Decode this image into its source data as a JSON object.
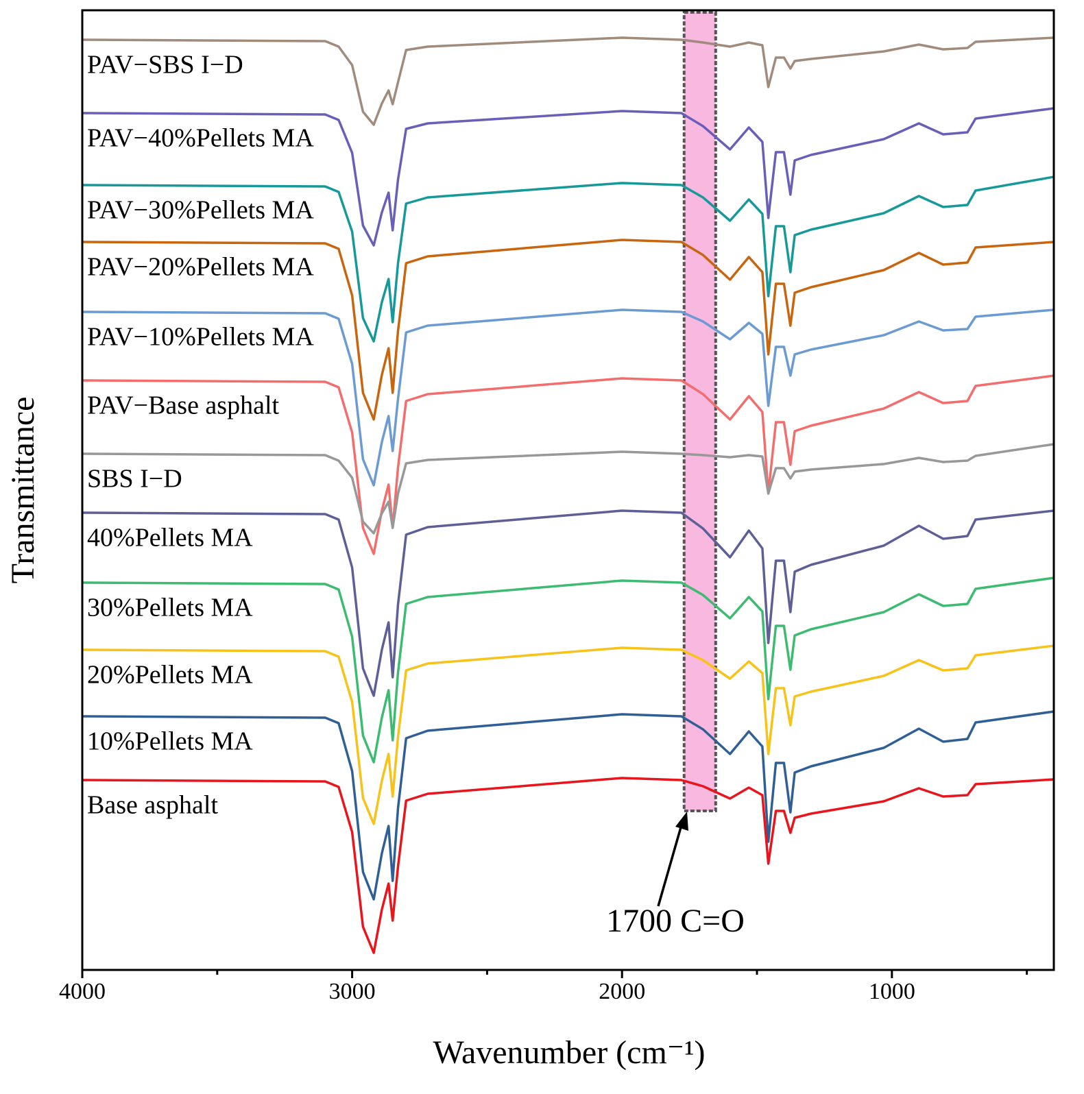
{
  "chart_data": {
    "type": "line",
    "xlabel": "Wavenumber (cm⁻¹)",
    "ylabel": "Transmittance",
    "xlim": [
      4000,
      400
    ],
    "ylim": [
      0,
      1400
    ],
    "xticks": [
      4000,
      3000,
      2000,
      1000
    ],
    "xminorticks": [
      3500,
      2500,
      1500,
      500
    ],
    "highlight_x": [
      1770,
      1653
    ],
    "highlight_color": "#f9b8e0",
    "annotation": "1700 C=O",
    "x": [
      4000,
      3100,
      3050,
      3000,
      2960,
      2920,
      2890,
      2865,
      2850,
      2830,
      2800,
      2720,
      2000,
      1780,
      1700,
      1600,
      1530,
      1480,
      1458,
      1430,
      1400,
      1376,
      1360,
      1300,
      1030,
      900,
      810,
      720,
      690,
      400
    ],
    "series": [
      {
        "name": "PAV−SBS I−D",
        "color": "#a08b7d",
        "values": [
          1357,
          1355,
          1347,
          1320,
          1252,
          1233,
          1264,
          1283,
          1263,
          1295,
          1342,
          1347,
          1360,
          1357,
          1353,
          1347,
          1353,
          1349,
          1288,
          1331,
          1331,
          1315,
          1326,
          1329,
          1340,
          1350,
          1343,
          1345,
          1354,
          1360
        ]
      },
      {
        "name": "PAV−40%Pellets MA",
        "color": "#6a5fb8",
        "values": [
          1250,
          1248,
          1240,
          1192,
          1086,
          1057,
          1105,
          1134,
          1079,
          1153,
          1227,
          1235,
          1253,
          1250,
          1231,
          1197,
          1229,
          1208,
          1097,
          1193,
          1193,
          1131,
          1181,
          1189,
          1212,
          1235,
          1219,
          1222,
          1242,
          1257
        ]
      },
      {
        "name": "PAV−30%Pellets MA",
        "color": "#17999a",
        "values": [
          1145,
          1143,
          1135,
          1077,
          951,
          917,
          974,
          1008,
          945,
          1031,
          1118,
          1127,
          1148,
          1145,
          1127,
          1093,
          1124,
          1103,
          983,
          1085,
          1085,
          1018,
          1072,
          1080,
          1104,
          1129,
          1113,
          1116,
          1137,
          1157
        ]
      },
      {
        "name": "PAV−20%Pellets MA",
        "color": "#c8660f",
        "values": [
          1062,
          1060,
          1052,
          984,
          842,
          803,
          868,
          907,
          842,
          932,
          1031,
          1041,
          1065,
          1062,
          1043,
          1007,
          1040,
          1018,
          898,
          1001,
          1001,
          940,
          988,
          996,
          1021,
          1046,
          1029,
          1032,
          1054,
          1062
        ]
      },
      {
        "name": "PAV−10%Pellets MA",
        "color": "#6b9bd2",
        "values": [
          960,
          958,
          950,
          884,
          745,
          707,
          770,
          808,
          757,
          833,
          930,
          940,
          963,
          960,
          946,
          920,
          944,
          928,
          823,
          909,
          909,
          867,
          898,
          905,
          926,
          946,
          933,
          935,
          953,
          963
        ]
      },
      {
        "name": "PAV−Base asphalt",
        "color": "#f46d6d",
        "values": [
          860,
          858,
          850,
          784,
          645,
          607,
          670,
          708,
          645,
          733,
          830,
          840,
          863,
          860,
          840,
          803,
          837,
          814,
          695,
          799,
          799,
          737,
          786,
          794,
          819,
          843,
          827,
          830,
          852,
          867
        ]
      },
      {
        "name": "SBS I−D",
        "color": "#989898",
        "values": [
          753,
          751,
          743,
          718,
          654,
          637,
          666,
          683,
          645,
          695,
          739,
          744,
          756,
          753,
          751,
          748,
          751,
          749,
          695,
          732,
          732,
          717,
          727,
          730,
          738,
          747,
          741,
          743,
          750,
          767
        ]
      },
      {
        "name": "40%Pellets MA",
        "color": "#5f5f97",
        "values": [
          667,
          665,
          657,
          587,
          440,
          400,
          467,
          507,
          427,
          533,
          635,
          646,
          670,
          667,
          644,
          602,
          641,
          615,
          477,
          597,
          597,
          522,
          581,
          591,
          619,
          648,
          629,
          633,
          657,
          670
        ]
      },
      {
        "name": "30%Pellets MA",
        "color": "#3dbb70",
        "values": [
          565,
          563,
          555,
          486,
          342,
          303,
          368,
          408,
          335,
          434,
          534,
          544,
          568,
          565,
          547,
          513,
          544,
          523,
          395,
          502,
          502,
          438,
          488,
          497,
          522,
          548,
          531,
          534,
          556,
          572
        ]
      },
      {
        "name": "20%Pellets MA",
        "color": "#f7c31b",
        "values": [
          467,
          465,
          457,
          391,
          251,
          213,
          276,
          315,
          253,
          340,
          437,
          447,
          470,
          467,
          452,
          425,
          450,
          433,
          315,
          411,
          411,
          357,
          399,
          406,
          429,
          452,
          437,
          440,
          459,
          473
        ]
      },
      {
        "name": "10%Pellets MA",
        "color": "#2f5f95",
        "values": [
          370,
          368,
          360,
          290,
          143,
          103,
          170,
          210,
          130,
          236,
          338,
          349,
          373,
          370,
          351,
          315,
          348,
          326,
          187,
          302,
          302,
          230,
          288,
          297,
          324,
          352,
          333,
          337,
          361,
          377
        ]
      },
      {
        "name": "Base asphalt",
        "color": "#e8151d",
        "values": [
          277,
          275,
          267,
          201,
          63,
          25,
          88,
          126,
          72,
          151,
          247,
          257,
          280,
          277,
          268,
          250,
          266,
          255,
          155,
          232,
          232,
          200,
          222,
          228,
          246,
          265,
          253,
          255,
          271,
          278
        ]
      }
    ]
  }
}
